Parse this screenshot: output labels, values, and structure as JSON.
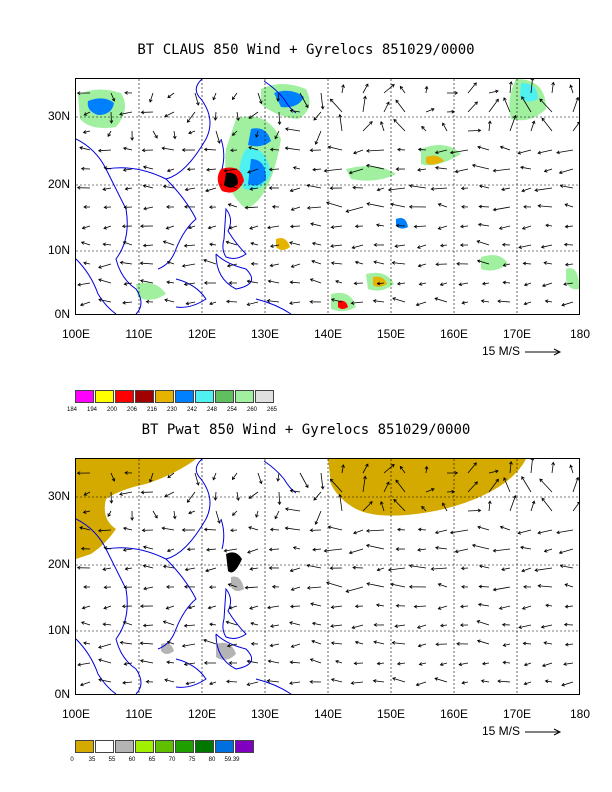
{
  "panel1": {
    "title": "BT CLAUS 850 Wind + Gyrelocs 851029/0000",
    "lat_labels": [
      "30N",
      "20N",
      "10N",
      "0N"
    ],
    "lon_labels": [
      "100E",
      "110E",
      "120E",
      "130E",
      "140E",
      "150E",
      "160E",
      "170E",
      "180"
    ],
    "scale_label": "15 M/S",
    "legend": {
      "colors": [
        "#ff00ff",
        "#ffff00",
        "#ff0000",
        "#a00000",
        "#e6b400",
        "#0080ff",
        "#4ff0f0",
        "#60c060",
        "#a0f0a0",
        "#e0e0e0"
      ],
      "ticks": [
        "184",
        "194",
        "200",
        "206",
        "216",
        "230",
        "242",
        "248",
        "254",
        "260",
        "265"
      ]
    }
  },
  "panel2": {
    "title": "BT Pwat 850 Wind + Gyrelocs 851029/0000",
    "lat_labels": [
      "30N",
      "20N",
      "10N",
      "0N"
    ],
    "lon_labels": [
      "100E",
      "110E",
      "120E",
      "130E",
      "140E",
      "150E",
      "160E",
      "170E",
      "180"
    ],
    "scale_label": "15 M/S",
    "legend": {
      "colors": [
        "#d4aa00",
        "#ffffff",
        "#b4b4b4",
        "#a0f000",
        "#60c000",
        "#20a000",
        "#007800",
        "#0070e0",
        "#8000c0"
      ],
      "ticks": [
        "0",
        "35",
        "55",
        "60",
        "65",
        "70",
        "75",
        "80",
        "59.39"
      ]
    }
  }
}
